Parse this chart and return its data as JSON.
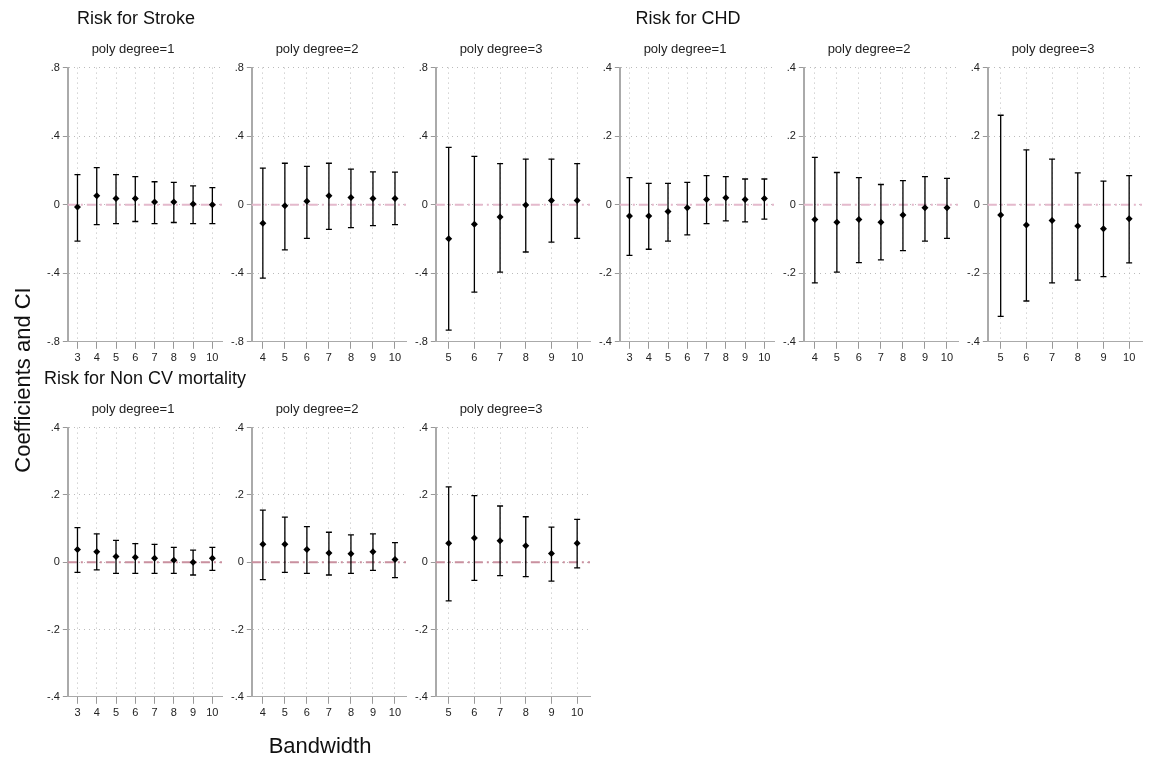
{
  "chart_data": [
    {
      "type": "scatter",
      "title": "Risk for Stroke",
      "subtitle": "poly degree=1",
      "ylabel": "Coefficients and CI",
      "categories": [
        "3",
        "4",
        "5",
        "6",
        "7",
        "8",
        "9",
        "10"
      ],
      "color": "#000000",
      "marker": "diamond",
      "grid": true,
      "ylim": [
        -0.8,
        0.8
      ],
      "yticks": [
        {
          "value": -0.8,
          "label": "-.8"
        },
        {
          "value": -0.4,
          "label": "-.4"
        },
        {
          "value": 0,
          "label": "0"
        },
        {
          "value": 0.4,
          "label": ".4"
        },
        {
          "value": 0.8,
          "label": ".8"
        }
      ],
      "ref_lines": [
        {
          "axis": "y",
          "value": 0,
          "color": "#e4b9cc",
          "line_style": "dashed"
        }
      ],
      "values": [
        -0.014,
        0.052,
        0.036,
        0.036,
        0.016,
        0.016,
        0.004,
        0
      ],
      "errors": [
        [
          -0.212,
          0.176
        ],
        [
          -0.116,
          0.216
        ],
        [
          -0.11,
          0.176
        ],
        [
          -0.098,
          0.164
        ],
        [
          -0.11,
          0.134
        ],
        [
          -0.104,
          0.13
        ],
        [
          -0.11,
          0.11
        ],
        [
          -0.11,
          0.1
        ]
      ]
    },
    {
      "type": "scatter",
      "subtitle": "poly degree=2",
      "categories": [
        "4",
        "5",
        "6",
        "7",
        "8",
        "9",
        "10"
      ],
      "color": "#000000",
      "marker": "diamond",
      "grid": true,
      "ylim": [
        -0.8,
        0.8
      ],
      "yticks": [
        {
          "value": -0.8,
          "label": "-.8"
        },
        {
          "value": -0.4,
          "label": "-.4"
        },
        {
          "value": 0,
          "label": "0"
        },
        {
          "value": 0.4,
          "label": ".4"
        },
        {
          "value": 0.8,
          "label": ".8"
        }
      ],
      "ref_lines": [
        {
          "axis": "y",
          "value": 0,
          "color": "#e4b9cc",
          "line_style": "dashed"
        }
      ],
      "values": [
        -0.108,
        -0.006,
        0.02,
        0.052,
        0.042,
        0.036,
        0.036
      ],
      "errors": [
        [
          -0.428,
          0.214
        ],
        [
          -0.264,
          0.242
        ],
        [
          -0.196,
          0.224
        ],
        [
          -0.144,
          0.242
        ],
        [
          -0.134,
          0.208
        ],
        [
          -0.122,
          0.192
        ],
        [
          -0.116,
          0.19
        ]
      ]
    },
    {
      "type": "scatter",
      "subtitle": "poly degree=3",
      "categories": [
        "5",
        "6",
        "7",
        "8",
        "9",
        "10"
      ],
      "color": "#000000",
      "marker": "diamond",
      "grid": true,
      "ylim": [
        -0.8,
        0.8
      ],
      "yticks": [
        {
          "value": -0.8,
          "label": "-.8"
        },
        {
          "value": -0.4,
          "label": "-.4"
        },
        {
          "value": 0,
          "label": "0"
        },
        {
          "value": 0.4,
          "label": ".4"
        },
        {
          "value": 0.8,
          "label": ".8"
        }
      ],
      "ref_lines": [
        {
          "axis": "y",
          "value": 0,
          "color": "#e4b9cc",
          "line_style": "dashed"
        }
      ],
      "values": [
        -0.198,
        -0.114,
        -0.072,
        -0.002,
        0.024,
        0.024
      ],
      "errors": [
        [
          -0.732,
          0.334
        ],
        [
          -0.51,
          0.282
        ],
        [
          -0.394,
          0.24
        ],
        [
          -0.276,
          0.266
        ],
        [
          -0.218,
          0.266
        ],
        [
          -0.196,
          0.24
        ]
      ]
    },
    {
      "type": "scatter",
      "title": "Risk for CHD",
      "subtitle": "poly degree=1",
      "categories": [
        "3",
        "4",
        "5",
        "6",
        "7",
        "8",
        "9",
        "10"
      ],
      "color": "#000000",
      "marker": "diamond",
      "grid": true,
      "ylim": [
        -0.4,
        0.4
      ],
      "yticks": [
        {
          "value": -0.4,
          "label": "-.4"
        },
        {
          "value": -0.2,
          "label": "-.2"
        },
        {
          "value": 0,
          "label": "0"
        },
        {
          "value": 0.2,
          "label": ".2"
        },
        {
          "value": 0.4,
          "label": ".4"
        }
      ],
      "ref_lines": [
        {
          "axis": "y",
          "value": 0,
          "color": "#e4b9cc",
          "line_style": "dashed"
        }
      ],
      "values": [
        -0.033,
        -0.033,
        -0.02,
        -0.009,
        0.015,
        0.02,
        0.015,
        0.018
      ],
      "errors": [
        [
          -0.148,
          0.079
        ],
        [
          -0.13,
          0.062
        ],
        [
          -0.106,
          0.062
        ],
        [
          -0.088,
          0.065
        ],
        [
          -0.055,
          0.085
        ],
        [
          -0.047,
          0.082
        ],
        [
          -0.05,
          0.075
        ],
        [
          -0.042,
          0.075
        ]
      ]
    },
    {
      "type": "scatter",
      "subtitle": "poly degree=2",
      "categories": [
        "4",
        "5",
        "6",
        "7",
        "8",
        "9",
        "10"
      ],
      "color": "#000000",
      "marker": "diamond",
      "grid": true,
      "ylim": [
        -0.4,
        0.4
      ],
      "yticks": [
        {
          "value": -0.4,
          "label": "-.4"
        },
        {
          "value": -0.2,
          "label": "-.2"
        },
        {
          "value": 0,
          "label": "0"
        },
        {
          "value": 0.2,
          "label": ".2"
        },
        {
          "value": 0.4,
          "label": ".4"
        }
      ],
      "ref_lines": [
        {
          "axis": "y",
          "value": 0,
          "color": "#e4b9cc",
          "line_style": "dashed"
        }
      ],
      "values": [
        -0.043,
        -0.051,
        -0.043,
        -0.051,
        -0.03,
        -0.009,
        -0.009
      ],
      "errors": [
        [
          -0.228,
          0.138
        ],
        [
          -0.197,
          0.094
        ],
        [
          -0.169,
          0.079
        ],
        [
          -0.161,
          0.059
        ],
        [
          -0.134,
          0.07
        ],
        [
          -0.106,
          0.082
        ],
        [
          -0.098,
          0.077
        ]
      ]
    },
    {
      "type": "scatter",
      "subtitle": "poly degree=3",
      "categories": [
        "5",
        "6",
        "7",
        "8",
        "9",
        "10"
      ],
      "color": "#000000",
      "marker": "diamond",
      "grid": true,
      "ylim": [
        -0.4,
        0.4
      ],
      "yticks": [
        {
          "value": -0.4,
          "label": "-.4"
        },
        {
          "value": -0.2,
          "label": "-.2"
        },
        {
          "value": 0,
          "label": "0"
        },
        {
          "value": 0.2,
          "label": ".2"
        },
        {
          "value": 0.4,
          "label": ".4"
        }
      ],
      "ref_lines": [
        {
          "axis": "y",
          "value": 0,
          "color": "#e4b9cc",
          "line_style": "dashed"
        }
      ],
      "values": [
        -0.03,
        -0.059,
        -0.046,
        -0.062,
        -0.07,
        -0.041
      ],
      "errors": [
        [
          -0.326,
          0.261
        ],
        [
          -0.281,
          0.16
        ],
        [
          -0.228,
          0.133
        ],
        [
          -0.22,
          0.093
        ],
        [
          -0.21,
          0.069
        ],
        [
          -0.17,
          0.085
        ]
      ]
    },
    {
      "type": "scatter",
      "title": "Risk for Non CV mortality",
      "subtitle": "poly degree=1",
      "categories": [
        "3",
        "4",
        "5",
        "6",
        "7",
        "8",
        "9",
        "10"
      ],
      "color": "#000000",
      "marker": "diamond",
      "grid": true,
      "ylim": [
        -0.4,
        0.4
      ],
      "yticks": [
        {
          "value": -0.4,
          "label": "-.4"
        },
        {
          "value": -0.2,
          "label": "-.2"
        },
        {
          "value": 0,
          "label": "0"
        },
        {
          "value": 0.2,
          "label": ".2"
        },
        {
          "value": 0.4,
          "label": ".4"
        }
      ],
      "ref_lines": [
        {
          "axis": "y",
          "value": 0,
          "color": "#c9909f",
          "line_style": "dashed"
        }
      ],
      "values": [
        0.038,
        0.031,
        0.017,
        0.015,
        0.012,
        0.006,
        0,
        0.012
      ],
      "errors": [
        [
          -0.03,
          0.103
        ],
        [
          -0.023,
          0.084
        ],
        [
          -0.033,
          0.065
        ],
        [
          -0.033,
          0.055
        ],
        [
          -0.033,
          0.053
        ],
        [
          -0.033,
          0.044
        ],
        [
          -0.038,
          0.036
        ],
        [
          -0.024,
          0.044
        ]
      ]
    },
    {
      "type": "scatter",
      "subtitle": "poly degree=2",
      "xlabel": "Bandwidth",
      "categories": [
        "4",
        "5",
        "6",
        "7",
        "8",
        "9",
        "10"
      ],
      "color": "#000000",
      "marker": "diamond",
      "grid": true,
      "ylim": [
        -0.4,
        0.4
      ],
      "yticks": [
        {
          "value": -0.4,
          "label": "-.4"
        },
        {
          "value": -0.2,
          "label": "-.2"
        },
        {
          "value": 0,
          "label": "0"
        },
        {
          "value": 0.2,
          "label": ".2"
        },
        {
          "value": 0.4,
          "label": ".4"
        }
      ],
      "ref_lines": [
        {
          "axis": "y",
          "value": 0,
          "color": "#c9909f",
          "line_style": "dashed"
        }
      ],
      "values": [
        0.053,
        0.053,
        0.038,
        0.027,
        0.025,
        0.031,
        0.008
      ],
      "errors": [
        [
          -0.052,
          0.155
        ],
        [
          -0.03,
          0.134
        ],
        [
          -0.033,
          0.106
        ],
        [
          -0.038,
          0.089
        ],
        [
          -0.033,
          0.081
        ],
        [
          -0.024,
          0.084
        ],
        [
          -0.046,
          0.058
        ]
      ]
    },
    {
      "type": "scatter",
      "subtitle": "poly degree=3",
      "categories": [
        "5",
        "6",
        "7",
        "8",
        "9",
        "10"
      ],
      "color": "#000000",
      "marker": "diamond",
      "grid": true,
      "ylim": [
        -0.4,
        0.4
      ],
      "yticks": [
        {
          "value": -0.4,
          "label": "-.4"
        },
        {
          "value": -0.2,
          "label": "-.2"
        },
        {
          "value": 0,
          "label": "0"
        },
        {
          "value": 0.2,
          "label": ".2"
        },
        {
          "value": 0.4,
          "label": ".4"
        }
      ],
      "ref_lines": [
        {
          "axis": "y",
          "value": 0,
          "color": "#c9909f",
          "line_style": "dashed"
        }
      ],
      "values": [
        0.056,
        0.072,
        0.064,
        0.049,
        0.026,
        0.056
      ],
      "errors": [
        [
          -0.115,
          0.224
        ],
        [
          -0.054,
          0.198
        ],
        [
          -0.04,
          0.167
        ],
        [
          -0.043,
          0.135
        ],
        [
          -0.056,
          0.104
        ],
        [
          -0.017,
          0.127
        ]
      ]
    }
  ]
}
